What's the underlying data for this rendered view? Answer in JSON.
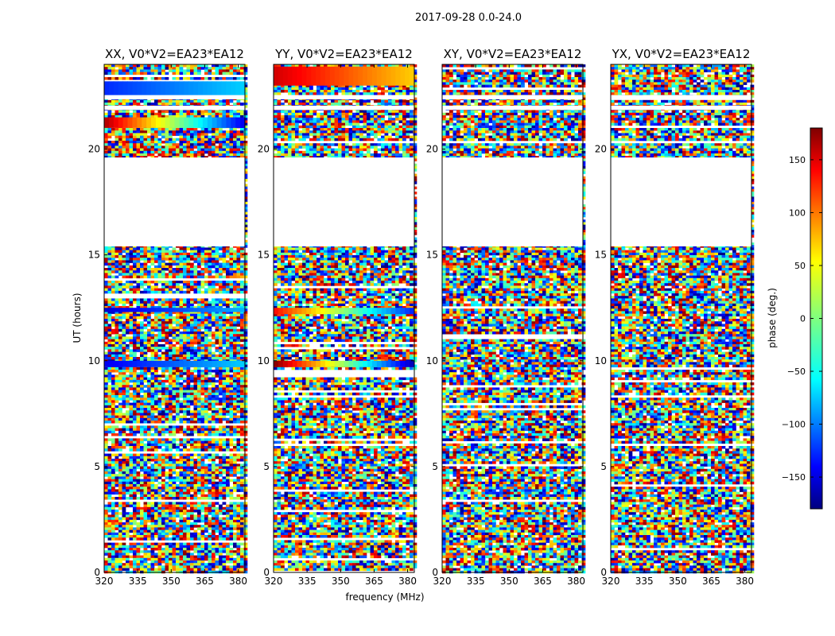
{
  "figure": {
    "suptitle": "2017-09-28 0.0-24.0",
    "xlabel": "frequency (MHz)",
    "ylabel": "UT (hours)"
  },
  "colorbar": {
    "label": "phase (deg.)",
    "colormap": "jet",
    "range": [
      -180,
      180
    ],
    "ticks": [
      150,
      100,
      50,
      0,
      -50,
      -100,
      -150
    ],
    "tick_labels": [
      "150",
      "100",
      "50",
      "0",
      "−50",
      "−100",
      "−150"
    ]
  },
  "chart_data": [
    {
      "type": "heatmap",
      "title": "XX, V0*V2=EA23*EA12",
      "x_range": [
        320,
        383
      ],
      "x_ticks": [
        320,
        335,
        350,
        365,
        380
      ],
      "y_range": [
        0,
        24
      ],
      "y_ticks": [
        0,
        5,
        10,
        15,
        20
      ],
      "value": "phase (deg.)",
      "value_range": [
        -180,
        180
      ],
      "blank_intervals_ut_hours": [
        [
          15.4,
          19.6
        ],
        [
          21.85,
          22.05
        ],
        [
          22.35,
          22.55
        ]
      ],
      "coherent_bands": [
        {
          "ut": [
            22.5,
            23.2
          ],
          "phase_low_freq": -120,
          "phase_high_freq": -60
        },
        {
          "ut": [
            21.0,
            21.5
          ],
          "phase_low_freq": 160,
          "phase_high_freq": -150
        },
        {
          "ut": [
            12.3,
            12.5
          ],
          "phase_low_freq": -150,
          "phase_high_freq": -70
        },
        {
          "ut": [
            9.7,
            10.0
          ],
          "phase_low_freq": -140,
          "phase_high_freq": -60
        }
      ]
    },
    {
      "type": "heatmap",
      "title": "YY, V0*V2=EA23*EA12",
      "x_range": [
        320,
        383
      ],
      "x_ticks": [
        320,
        335,
        350,
        365,
        380
      ],
      "y_range": [
        0,
        24
      ],
      "y_ticks": [
        0,
        5,
        10,
        15,
        20
      ],
      "value": "phase (deg.)",
      "value_range": [
        -180,
        180
      ],
      "blank_intervals_ut_hours": [
        [
          15.4,
          19.6
        ],
        [
          21.85,
          22.05
        ],
        [
          22.35,
          22.55
        ]
      ],
      "coherent_bands": [
        {
          "ut": [
            23.0,
            23.9
          ],
          "phase_low_freq": 150,
          "phase_high_freq": 60
        },
        {
          "ut": [
            12.2,
            12.5
          ],
          "phase_low_freq": 130,
          "phase_high_freq": -130
        },
        {
          "ut": [
            9.7,
            10.0
          ],
          "phase_low_freq": 175,
          "phase_high_freq": -170
        }
      ]
    },
    {
      "type": "heatmap",
      "title": "XY, V0*V2=EA23*EA12",
      "x_range": [
        320,
        383
      ],
      "x_ticks": [
        320,
        335,
        350,
        365,
        380
      ],
      "y_range": [
        0,
        24
      ],
      "y_ticks": [
        0,
        5,
        10,
        15,
        20
      ],
      "value": "phase (deg.)",
      "value_range": [
        -180,
        180
      ],
      "blank_intervals_ut_hours": [
        [
          15.4,
          19.6
        ],
        [
          21.85,
          22.05
        ],
        [
          22.35,
          22.55
        ]
      ],
      "coherent_bands": []
    },
    {
      "type": "heatmap",
      "title": "YX, V0*V2=EA23*EA12",
      "x_range": [
        320,
        383
      ],
      "x_ticks": [
        320,
        335,
        350,
        365,
        380
      ],
      "y_range": [
        0,
        24
      ],
      "y_ticks": [
        0,
        5,
        10,
        15,
        20
      ],
      "value": "phase (deg.)",
      "value_range": [
        -180,
        180
      ],
      "blank_intervals_ut_hours": [
        [
          15.4,
          19.6
        ],
        [
          21.85,
          22.05
        ],
        [
          22.35,
          22.55
        ]
      ],
      "coherent_bands": []
    }
  ]
}
